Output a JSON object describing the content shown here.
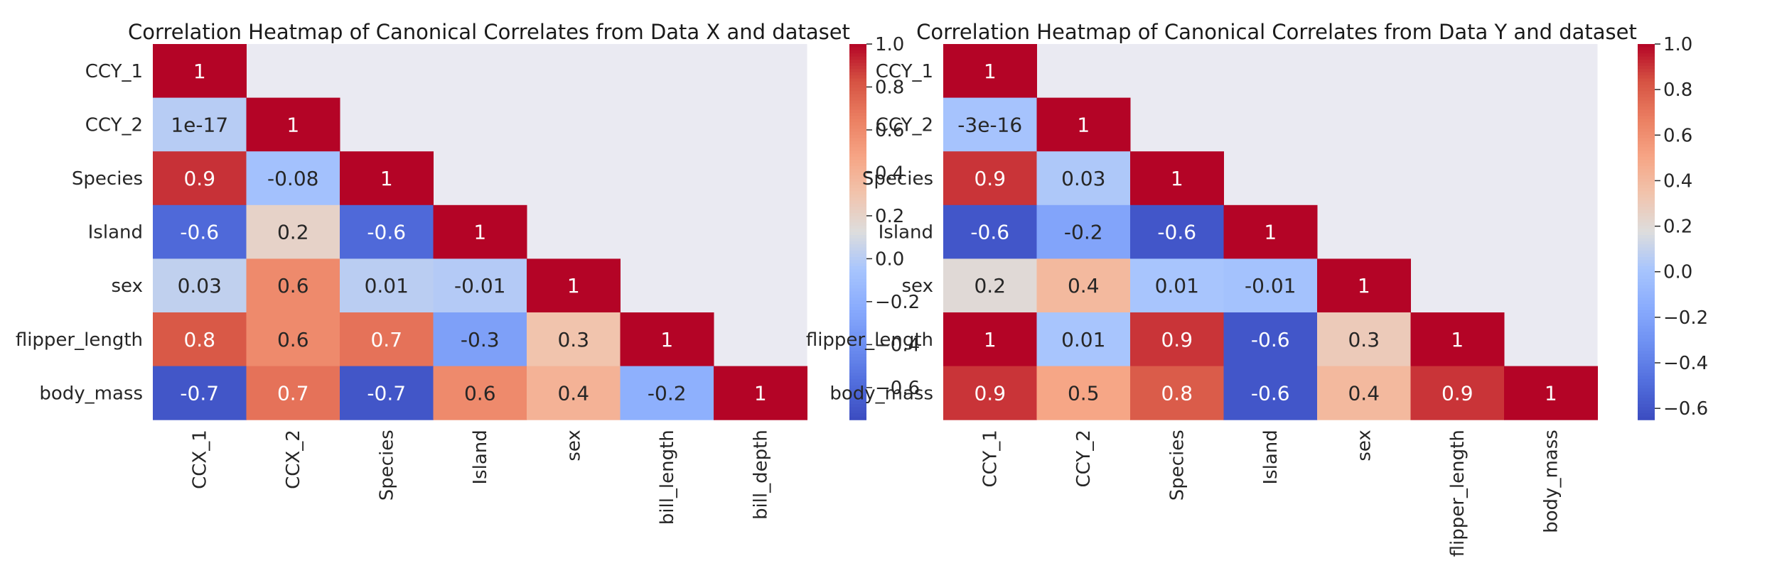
{
  "chart_data": [
    {
      "type": "heatmap",
      "title": "Correlation Heatmap of Canonical Correlates from Data X and dataset",
      "row_labels": [
        "CCY_1",
        "CCY_2",
        "Species",
        "Island",
        "sex",
        "flipper_length",
        "body_mass"
      ],
      "col_labels": [
        "CCX_1",
        "CCX_2",
        "Species",
        "Island",
        "sex",
        "bill_length",
        "bill_depth"
      ],
      "masked": "upper triangle (above diagonal)",
      "values": [
        [
          1,
          null,
          null,
          null,
          null,
          null,
          null
        ],
        [
          1e-17,
          1,
          null,
          null,
          null,
          null,
          null
        ],
        [
          0.9,
          -0.08,
          1,
          null,
          null,
          null,
          null
        ],
        [
          -0.6,
          0.2,
          -0.6,
          1,
          null,
          null,
          null
        ],
        [
          0.03,
          0.6,
          0.01,
          -0.01,
          1,
          null,
          null
        ],
        [
          0.8,
          0.6,
          0.7,
          -0.3,
          0.3,
          1,
          null
        ],
        [
          -0.7,
          0.7,
          -0.7,
          0.6,
          0.4,
          -0.2,
          1
        ]
      ],
      "cell_labels": [
        [
          "1",
          "",
          "",
          "",
          "",
          "",
          ""
        ],
        [
          "1e-17",
          "1",
          "",
          "",
          "",
          "",
          ""
        ],
        [
          "0.9",
          "-0.08",
          "1",
          "",
          "",
          "",
          ""
        ],
        [
          "-0.6",
          "0.2",
          "-0.6",
          "1",
          "",
          "",
          ""
        ],
        [
          "0.03",
          "0.6",
          "0.01",
          "-0.01",
          "1",
          "",
          ""
        ],
        [
          "0.8",
          "0.6",
          "0.7",
          "-0.3",
          "0.3",
          "1",
          ""
        ],
        [
          "-0.7",
          "0.7",
          "-0.7",
          "0.6",
          "0.4",
          "-0.2",
          "1"
        ]
      ],
      "colormap": "coolwarm",
      "vmin": -0.75,
      "vmax": 1.0,
      "colorbar_ticks": [
        1.0,
        0.8,
        0.6,
        0.4,
        0.2,
        0.0,
        -0.2,
        -0.4,
        -0.6
      ],
      "colorbar_tick_labels": [
        "1.0",
        "0.8",
        "0.6",
        "0.4",
        "0.2",
        "0.0",
        "−0.2",
        "−0.4",
        "−0.6"
      ]
    },
    {
      "type": "heatmap",
      "title": "Correlation Heatmap of Canonical Correlates from Data Y and dataset",
      "row_labels": [
        "CCY_1",
        "CCY_2",
        "Species",
        "Island",
        "sex",
        "flipper_length",
        "body_mass"
      ],
      "col_labels": [
        "CCY_1",
        "CCY_2",
        "Species",
        "Island",
        "sex",
        "flipper_length",
        "body_mass"
      ],
      "masked": "upper triangle (above diagonal)",
      "values": [
        [
          1,
          null,
          null,
          null,
          null,
          null,
          null
        ],
        [
          -3e-16,
          1,
          null,
          null,
          null,
          null,
          null
        ],
        [
          0.9,
          0.03,
          1,
          null,
          null,
          null,
          null
        ],
        [
          -0.6,
          -0.2,
          -0.6,
          1,
          null,
          null,
          null
        ],
        [
          0.2,
          0.4,
          0.01,
          -0.01,
          1,
          null,
          null
        ],
        [
          1,
          0.01,
          0.9,
          -0.6,
          0.3,
          1,
          null
        ],
        [
          0.9,
          0.5,
          0.8,
          -0.6,
          0.4,
          0.9,
          1
        ]
      ],
      "cell_labels": [
        [
          "1",
          "",
          "",
          "",
          "",
          "",
          ""
        ],
        [
          "-3e-16",
          "1",
          "",
          "",
          "",
          "",
          ""
        ],
        [
          "0.9",
          "0.03",
          "1",
          "",
          "",
          "",
          ""
        ],
        [
          "-0.6",
          "-0.2",
          "-0.6",
          "1",
          "",
          "",
          ""
        ],
        [
          "0.2",
          "0.4",
          "0.01",
          "-0.01",
          "1",
          "",
          ""
        ],
        [
          "1",
          "0.01",
          "0.9",
          "-0.6",
          "0.3",
          "1",
          ""
        ],
        [
          "0.9",
          "0.5",
          "0.8",
          "-0.6",
          "0.4",
          "0.9",
          "1"
        ]
      ],
      "colormap": "coolwarm",
      "vmin": -0.65,
      "vmax": 1.0,
      "colorbar_ticks": [
        1.0,
        0.8,
        0.6,
        0.4,
        0.2,
        0.0,
        -0.2,
        -0.4,
        -0.6
      ],
      "colorbar_tick_labels": [
        "1.0",
        "0.8",
        "0.6",
        "0.4",
        "0.2",
        "0.0",
        "−0.2",
        "−0.4",
        "−0.6"
      ]
    }
  ],
  "colors": {
    "masked_background": "#eaeaf2",
    "text_dark": "#262626",
    "text_light": "#ffffff"
  }
}
